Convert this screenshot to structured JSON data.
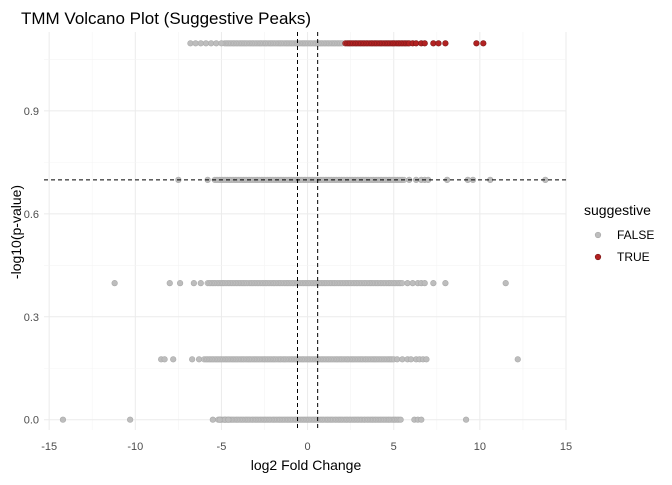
{
  "chart_data": {
    "type": "scatter",
    "title": "TMM Volcano Plot (Suggestive Peaks)",
    "xlabel": "log2 Fold Change",
    "ylabel": "-log10(p-value)",
    "xlim": [
      -15.3,
      15
    ],
    "ylim": [
      -0.03,
      1.13
    ],
    "x_ticks": [
      -15,
      -10,
      -5,
      0,
      5,
      10,
      15
    ],
    "x_tick_labels": [
      "-15",
      "-10",
      "-5",
      "0",
      "5",
      "10",
      "15"
    ],
    "y_ticks": [
      0.0,
      0.3,
      0.6,
      0.9
    ],
    "y_tick_labels": [
      "0.0",
      "0.3",
      "0.6",
      "0.9"
    ],
    "grid": true,
    "reference_lines": {
      "vertical": [
        -0.585,
        0.585
      ],
      "horizontal": [
        0.699
      ]
    },
    "legend": {
      "title": "suggestive",
      "position": "right",
      "entries": [
        {
          "label": "FALSE",
          "color": "#bdbdbd"
        },
        {
          "label": "TRUE",
          "color": "#b22222"
        }
      ]
    },
    "series": [
      {
        "name": "FALSE",
        "color": "#bdbdbd",
        "rows": [
          {
            "y": 0.0,
            "dense": [
              -5.2,
              5.3
            ],
            "x": [
              -14.2,
              -10.3,
              -5.5,
              -5.1,
              -4.8,
              -4.6,
              5.4,
              6.2,
              6.4,
              6.6,
              9.2
            ]
          },
          {
            "y": 0.176,
            "dense": [
              -6.0,
              5.0
            ],
            "x": [
              -8.5,
              -8.3,
              -7.8,
              -6.7,
              -6.3,
              5.2,
              5.5,
              5.8,
              6.0,
              6.3,
              6.5,
              6.7,
              6.9,
              12.2
            ]
          },
          {
            "y": 0.398,
            "dense": [
              -5.8,
              5.5
            ],
            "x": [
              -11.2,
              -8.0,
              -7.4,
              -6.6,
              -6.2,
              5.8,
              6.1,
              6.4,
              6.6,
              6.8,
              7.3,
              8.0,
              11.5
            ]
          },
          {
            "y": 0.699,
            "dense": [
              -5.4,
              5.6
            ],
            "x": [
              -7.5,
              -5.8,
              5.9,
              6.3,
              6.6,
              6.8,
              7.0,
              8.1,
              9.3,
              9.6,
              10.6,
              13.8
            ]
          },
          {
            "y": 1.097,
            "dense": [
              -4.8,
              2.0
            ],
            "x": [
              -6.8,
              -6.5,
              -6.2,
              -5.9,
              -5.6,
              -5.3,
              -5.0
            ]
          }
        ]
      },
      {
        "name": "TRUE",
        "color": "#b22222",
        "rows": [
          {
            "y": 1.097,
            "dense": [
              2.2,
              5.9
            ],
            "x": [
              6.1,
              6.3,
              6.6,
              6.8,
              7.3,
              7.6,
              8.0,
              9.8,
              10.2
            ]
          }
        ]
      }
    ]
  }
}
